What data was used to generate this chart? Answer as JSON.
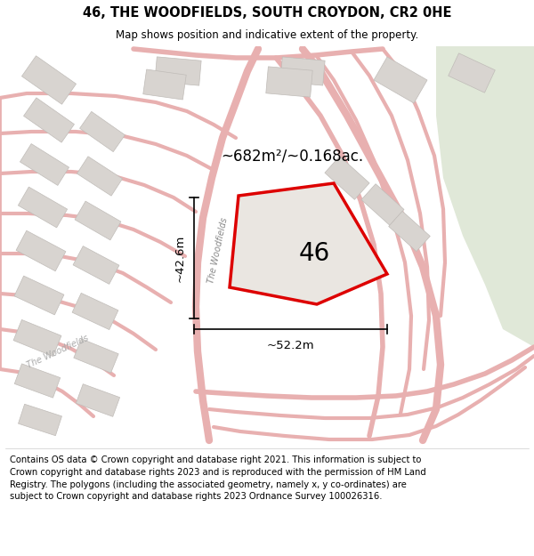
{
  "title": "46, THE WOODFIELDS, SOUTH CROYDON, CR2 0HE",
  "subtitle": "Map shows position and indicative extent of the property.",
  "footer": "Contains OS data © Crown copyright and database right 2021. This information is subject to Crown copyright and database rights 2023 and is reproduced with the permission of HM Land Registry. The polygons (including the associated geometry, namely x, y co-ordinates) are subject to Crown copyright and database rights 2023 Ordnance Survey 100026316.",
  "area_label": "~682m²/~0.168ac.",
  "property_number": "46",
  "dim_height": "~42.6m",
  "dim_width": "~52.2m",
  "road_label_1": "The Woodfields",
  "road_label_2": "The Woodfields",
  "map_bg": "#f5f2ee",
  "road_color": "#e8b0b0",
  "road_fill": "#f5eeee",
  "boundary_color": "#dd0000",
  "building_color": "#d8d4d0",
  "building_edge": "#c0bcb8",
  "green_color": "#e0e8d8",
  "title_fontsize": 10.5,
  "subtitle_fontsize": 8.5,
  "footer_fontsize": 7.2,
  "dim_fontsize": 9.5,
  "area_fontsize": 12,
  "num_fontsize": 20,
  "road_label_fontsize": 7
}
